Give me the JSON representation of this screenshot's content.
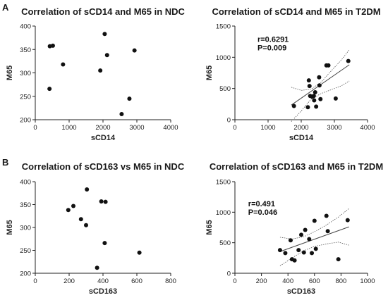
{
  "panel_labels": [
    "A",
    "B"
  ],
  "chart_data": [
    {
      "type": "scatter",
      "title": "Correlation of  sCD14 and M65 in NDC",
      "xlabel": "sCD14",
      "ylabel": "M65",
      "xlim": [
        0,
        4000
      ],
      "ylim": [
        200,
        400
      ],
      "xticks": [
        0,
        1000,
        2000,
        3000,
        4000
      ],
      "yticks": [
        200,
        250,
        300,
        350,
        400
      ],
      "grid": false,
      "points": [
        {
          "x": 430,
          "y": 357
        },
        {
          "x": 520,
          "y": 358
        },
        {
          "x": 820,
          "y": 318
        },
        {
          "x": 420,
          "y": 266
        },
        {
          "x": 1920,
          "y": 305
        },
        {
          "x": 2050,
          "y": 383
        },
        {
          "x": 2120,
          "y": 338
        },
        {
          "x": 2930,
          "y": 348
        },
        {
          "x": 2780,
          "y": 245
        },
        {
          "x": 2550,
          "y": 212
        }
      ]
    },
    {
      "type": "scatter",
      "title": "Correlation of sCD14 and M65 in T2DM",
      "xlabel": "sCD14",
      "ylabel": "M65",
      "xlim": [
        0,
        4000
      ],
      "ylim": [
        0,
        1500
      ],
      "xticks": [
        0,
        1000,
        2000,
        3000,
        4000
      ],
      "yticks": [
        0,
        500,
        1000,
        1500
      ],
      "grid": false,
      "annotation": [
        "r=0.6291",
        "P=0.009"
      ],
      "regression": {
        "x": [
          1700,
          3450
        ],
        "y": [
          235,
          880
        ]
      },
      "confidence_band": {
        "x": [
          1700,
          2000,
          2300,
          2600,
          2900,
          3200,
          3450
        ],
        "upper": [
          520,
          470,
          490,
          600,
          780,
          950,
          1120
        ],
        "lower": [
          -30,
          140,
          330,
          420,
          480,
          540,
          620
        ]
      },
      "points": [
        {
          "x": 1780,
          "y": 220
        },
        {
          "x": 2200,
          "y": 200
        },
        {
          "x": 2230,
          "y": 630
        },
        {
          "x": 2250,
          "y": 540
        },
        {
          "x": 2270,
          "y": 380
        },
        {
          "x": 2330,
          "y": 370
        },
        {
          "x": 2380,
          "y": 380
        },
        {
          "x": 2390,
          "y": 310
        },
        {
          "x": 2420,
          "y": 440
        },
        {
          "x": 2450,
          "y": 210
        },
        {
          "x": 2540,
          "y": 680
        },
        {
          "x": 2550,
          "y": 550
        },
        {
          "x": 2580,
          "y": 330
        },
        {
          "x": 2760,
          "y": 870
        },
        {
          "x": 2820,
          "y": 870
        },
        {
          "x": 3040,
          "y": 340
        },
        {
          "x": 3420,
          "y": 940
        }
      ]
    },
    {
      "type": "scatter",
      "title": "Correlation of  sCD163 vs M65 in NDC",
      "xlabel": "sCD163",
      "ylabel": "M65",
      "xlim": [
        0,
        800
      ],
      "ylim": [
        200,
        400
      ],
      "xticks": [
        0,
        200,
        400,
        600,
        800
      ],
      "yticks": [
        200,
        250,
        300,
        350,
        400
      ],
      "grid": false,
      "points": [
        {
          "x": 195,
          "y": 338
        },
        {
          "x": 225,
          "y": 347
        },
        {
          "x": 270,
          "y": 318
        },
        {
          "x": 300,
          "y": 305
        },
        {
          "x": 305,
          "y": 383
        },
        {
          "x": 390,
          "y": 357
        },
        {
          "x": 415,
          "y": 356
        },
        {
          "x": 410,
          "y": 266
        },
        {
          "x": 365,
          "y": 212
        },
        {
          "x": 615,
          "y": 245
        }
      ]
    },
    {
      "type": "scatter",
      "title": "Correlation of sCD163 and M65 in T2DM",
      "xlabel": "sCD163",
      "ylabel": "M65",
      "xlim": [
        0,
        1000
      ],
      "ylim": [
        0,
        1500
      ],
      "xticks": [
        0,
        200,
        400,
        600,
        800,
        1000
      ],
      "yticks": [
        0,
        500,
        1000,
        1500
      ],
      "grid": false,
      "annotation": [
        "r=0.491",
        "P=0.046"
      ],
      "regression": {
        "x": [
          340,
          860
        ],
        "y": [
          355,
          760
        ]
      },
      "confidence_band": {
        "x": [
          340,
          430,
          520,
          600,
          690,
          780,
          860
        ],
        "upper": [
          590,
          560,
          600,
          680,
          790,
          920,
          1060
        ],
        "lower": [
          120,
          250,
          370,
          440,
          480,
          510,
          460
        ]
      },
      "points": [
        {
          "x": 340,
          "y": 380
        },
        {
          "x": 380,
          "y": 330
        },
        {
          "x": 420,
          "y": 540
        },
        {
          "x": 430,
          "y": 230
        },
        {
          "x": 450,
          "y": 210
        },
        {
          "x": 480,
          "y": 380
        },
        {
          "x": 500,
          "y": 630
        },
        {
          "x": 520,
          "y": 340
        },
        {
          "x": 530,
          "y": 710
        },
        {
          "x": 560,
          "y": 560
        },
        {
          "x": 580,
          "y": 330
        },
        {
          "x": 600,
          "y": 860
        },
        {
          "x": 610,
          "y": 400
        },
        {
          "x": 690,
          "y": 940
        },
        {
          "x": 700,
          "y": 690
        },
        {
          "x": 780,
          "y": 230
        },
        {
          "x": 850,
          "y": 870
        }
      ]
    }
  ]
}
